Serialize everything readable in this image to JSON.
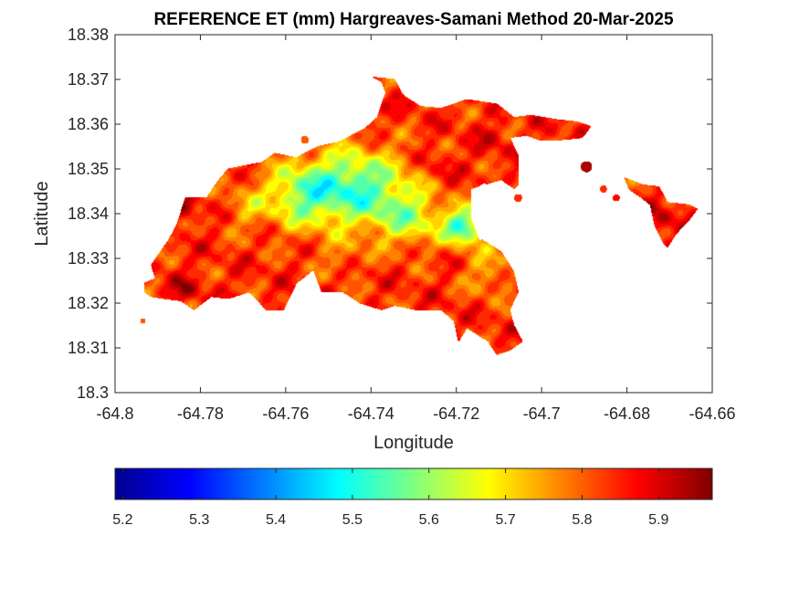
{
  "chart_data": {
    "type": "heatmap",
    "title": "REFERENCE ET (mm) Hargreaves-Samani Method  20-Mar-2025",
    "xlabel": "Longitude",
    "ylabel": "Latitude",
    "xlim": [
      -64.8,
      -64.66
    ],
    "ylim": [
      18.3,
      18.38
    ],
    "xticks": [
      "-64.8",
      "-64.78",
      "-64.76",
      "-64.74",
      "-64.72",
      "-64.7",
      "-64.68",
      "-64.66"
    ],
    "yticks": [
      "18.3",
      "18.31",
      "18.32",
      "18.33",
      "18.34",
      "18.35",
      "18.36",
      "18.37",
      "18.38"
    ],
    "grid": false,
    "colormap": "jet",
    "colorbar": {
      "orientation": "horizontal",
      "position": "bottom",
      "range": [
        5.19,
        5.97
      ],
      "ticks": [
        "5.2",
        "5.3",
        "5.4",
        "5.5",
        "5.6",
        "5.7",
        "5.8",
        "5.9"
      ]
    },
    "main_outline": [
      [
        -64.793,
        18.3225
      ],
      [
        -64.793,
        18.3245
      ],
      [
        -64.7905,
        18.3255
      ],
      [
        -64.7915,
        18.3285
      ],
      [
        -64.7875,
        18.334
      ],
      [
        -64.7855,
        18.3375
      ],
      [
        -64.7835,
        18.3435
      ],
      [
        -64.7785,
        18.3435
      ],
      [
        -64.7765,
        18.3465
      ],
      [
        -64.7735,
        18.35
      ],
      [
        -64.7655,
        18.3515
      ],
      [
        -64.7625,
        18.3535
      ],
      [
        -64.7575,
        18.3525
      ],
      [
        -64.7525,
        18.355
      ],
      [
        -64.7475,
        18.356
      ],
      [
        -64.7415,
        18.359
      ],
      [
        -64.7385,
        18.3615
      ],
      [
        -64.7375,
        18.3645
      ],
      [
        -64.7365,
        18.367
      ],
      [
        -64.7375,
        18.3695
      ],
      [
        -64.7395,
        18.3705
      ],
      [
        -64.7345,
        18.37
      ],
      [
        -64.7325,
        18.3665
      ],
      [
        -64.7285,
        18.364
      ],
      [
        -64.7235,
        18.3635
      ],
      [
        -64.7175,
        18.3655
      ],
      [
        -64.7105,
        18.3645
      ],
      [
        -64.7065,
        18.3615
      ],
      [
        -64.7025,
        18.362
      ],
      [
        -64.6965,
        18.361
      ],
      [
        -64.6915,
        18.3605
      ],
      [
        -64.6885,
        18.3595
      ],
      [
        -64.6905,
        18.357
      ],
      [
        -64.6955,
        18.3565
      ],
      [
        -64.7005,
        18.3565
      ],
      [
        -64.7035,
        18.3575
      ],
      [
        -64.7075,
        18.357
      ],
      [
        -64.7055,
        18.353
      ],
      [
        -64.7055,
        18.3465
      ],
      [
        -64.7085,
        18.344
      ],
      [
        -64.7135,
        18.347
      ],
      [
        -64.7165,
        18.345
      ],
      [
        -64.7165,
        18.339
      ],
      [
        -64.7145,
        18.3345
      ],
      [
        -64.7095,
        18.3315
      ],
      [
        -64.7065,
        18.327
      ],
      [
        -64.7055,
        18.3225
      ],
      [
        -64.7075,
        18.3185
      ],
      [
        -64.7065,
        18.315
      ],
      [
        -64.7045,
        18.3115
      ],
      [
        -64.7075,
        18.3095
      ],
      [
        -64.7105,
        18.3085
      ],
      [
        -64.7125,
        18.3115
      ],
      [
        -64.7175,
        18.3145
      ],
      [
        -64.7195,
        18.3115
      ],
      [
        -64.7205,
        18.316
      ],
      [
        -64.7235,
        18.3185
      ],
      [
        -64.7295,
        18.3185
      ],
      [
        -64.7345,
        18.3195
      ],
      [
        -64.7375,
        18.3185
      ],
      [
        -64.7425,
        18.32
      ],
      [
        -64.7465,
        18.3225
      ],
      [
        -64.7515,
        18.3225
      ],
      [
        -64.7535,
        18.3275
      ],
      [
        -64.7575,
        18.3245
      ],
      [
        -64.7605,
        18.3185
      ],
      [
        -64.7645,
        18.3185
      ],
      [
        -64.7685,
        18.3225
      ],
      [
        -64.7735,
        18.321
      ],
      [
        -64.7775,
        18.3215
      ],
      [
        -64.7815,
        18.3185
      ],
      [
        -64.7845,
        18.3205
      ],
      [
        -64.7885,
        18.321
      ],
      [
        -64.7915,
        18.3215
      ]
    ],
    "east_outline": [
      [
        -64.6715,
        18.3335
      ],
      [
        -64.6735,
        18.3375
      ],
      [
        -64.6745,
        18.342
      ],
      [
        -64.6765,
        18.3435
      ],
      [
        -64.6795,
        18.3455
      ],
      [
        -64.6805,
        18.348
      ],
      [
        -64.6765,
        18.3465
      ],
      [
        -64.6725,
        18.346
      ],
      [
        -64.6705,
        18.3425
      ],
      [
        -64.6655,
        18.342
      ],
      [
        -64.6635,
        18.341
      ],
      [
        -64.6655,
        18.3385
      ],
      [
        -64.6685,
        18.3355
      ],
      [
        -64.6705,
        18.3325
      ]
    ],
    "white_notch": [
      [
        -64.7165,
        18.3455
      ],
      [
        -64.7095,
        18.3475
      ],
      [
        -64.7065,
        18.3455
      ],
      [
        -64.7075,
        18.342
      ],
      [
        -64.7105,
        18.3365
      ],
      [
        -64.7145,
        18.334
      ],
      [
        -64.7165,
        18.339
      ]
    ],
    "islets": [
      {
        "x": -64.7555,
        "y": 18.3565,
        "r": 0.0008,
        "v": 5.82
      },
      {
        "x": -64.6895,
        "y": 18.3505,
        "r": 0.0012,
        "v": 5.95
      },
      {
        "x": -64.6855,
        "y": 18.3455,
        "r": 0.0007,
        "v": 5.84
      },
      {
        "x": -64.6825,
        "y": 18.3435,
        "r": 0.0007,
        "v": 5.88
      },
      {
        "x": -64.7055,
        "y": 18.3435,
        "r": 0.0008,
        "v": 5.85
      },
      {
        "x": -64.7935,
        "y": 18.316,
        "r": 0.0005,
        "v": 5.82
      }
    ],
    "field": [
      {
        "x": -64.744,
        "y": 18.346,
        "sx": 0.009,
        "sy": 0.006,
        "a": -0.3
      },
      {
        "x": -64.757,
        "y": 18.344,
        "sx": 0.006,
        "sy": 0.005,
        "a": -0.18
      },
      {
        "x": -64.731,
        "y": 18.339,
        "sx": 0.006,
        "sy": 0.0045,
        "a": -0.17
      },
      {
        "x": -64.7183,
        "y": 18.3372,
        "sx": 0.0032,
        "sy": 0.0028,
        "a": -0.32
      },
      {
        "x": -64.7125,
        "y": 18.327,
        "sx": 0.004,
        "sy": 0.004,
        "a": -0.1
      },
      {
        "x": -64.7695,
        "y": 18.3415,
        "sx": 0.0035,
        "sy": 0.004,
        "a": -0.08
      },
      {
        "x": -64.747,
        "y": 18.3305,
        "sx": 0.004,
        "sy": 0.003,
        "a": -0.06
      },
      {
        "x": -64.7835,
        "y": 18.3405,
        "sx": 0.002,
        "sy": 0.002,
        "a": 0.08
      },
      {
        "x": -64.7835,
        "y": 18.323,
        "sx": 0.0025,
        "sy": 0.002,
        "a": 0.08
      },
      {
        "x": -64.7245,
        "y": 18.3505,
        "sx": 0.003,
        "sy": 0.0025,
        "a": 0.05
      },
      {
        "x": -64.7115,
        "y": 18.3565,
        "sx": 0.003,
        "sy": 0.0025,
        "a": 0.04
      },
      {
        "x": -64.6725,
        "y": 18.339,
        "sx": 0.002,
        "sy": 0.0025,
        "a": 0.08
      }
    ]
  }
}
